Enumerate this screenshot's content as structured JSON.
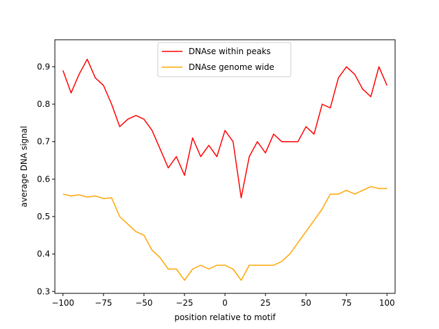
{
  "chart_data": {
    "type": "line",
    "title": "",
    "xlabel": "position relative to motif",
    "ylabel": "average DNA signal",
    "xlim": [
      -105,
      105
    ],
    "ylim": [
      0.295,
      0.972
    ],
    "xticks": [
      -100,
      -75,
      -50,
      -25,
      0,
      25,
      50,
      75,
      100
    ],
    "xtick_labels": [
      "−100",
      "−75",
      "−50",
      "−25",
      "0",
      "25",
      "50",
      "75",
      "100"
    ],
    "yticks": [
      0.3,
      0.4,
      0.5,
      0.6,
      0.7,
      0.8,
      0.9
    ],
    "ytick_labels": [
      "0.3",
      "0.4",
      "0.5",
      "0.6",
      "0.7",
      "0.8",
      "0.9"
    ],
    "grid": false,
    "legend_position": "top-center",
    "x": [
      -100,
      -95,
      -90,
      -85,
      -80,
      -75,
      -70,
      -65,
      -60,
      -55,
      -50,
      -45,
      -40,
      -35,
      -30,
      -25,
      -20,
      -15,
      -10,
      -5,
      0,
      5,
      10,
      15,
      20,
      25,
      30,
      35,
      40,
      45,
      50,
      55,
      60,
      65,
      70,
      75,
      80,
      85,
      90,
      95,
      100
    ],
    "series": [
      {
        "name": "DNAse within peaks",
        "color": "#ff0000",
        "values": [
          0.89,
          0.83,
          0.88,
          0.92,
          0.87,
          0.85,
          0.8,
          0.74,
          0.76,
          0.77,
          0.76,
          0.73,
          0.68,
          0.63,
          0.66,
          0.61,
          0.71,
          0.66,
          0.69,
          0.66,
          0.73,
          0.7,
          0.55,
          0.66,
          0.7,
          0.67,
          0.72,
          0.7,
          0.7,
          0.7,
          0.74,
          0.72,
          0.8,
          0.79,
          0.87,
          0.9,
          0.88,
          0.84,
          0.82,
          0.9,
          0.85
        ]
      },
      {
        "name": "DNAse genome wide",
        "color": "#ffa500",
        "values": [
          0.56,
          0.555,
          0.558,
          0.552,
          0.555,
          0.548,
          0.55,
          0.5,
          0.48,
          0.46,
          0.45,
          0.41,
          0.39,
          0.36,
          0.36,
          0.33,
          0.36,
          0.37,
          0.36,
          0.37,
          0.37,
          0.36,
          0.33,
          0.37,
          0.37,
          0.37,
          0.37,
          0.38,
          0.4,
          0.43,
          0.46,
          0.49,
          0.52,
          0.56,
          0.56,
          0.57,
          0.56,
          0.57,
          0.58,
          0.575,
          0.575
        ]
      }
    ]
  }
}
